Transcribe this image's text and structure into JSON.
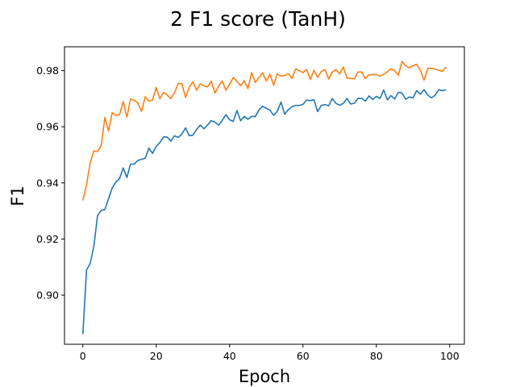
{
  "chart_data": {
    "type": "line",
    "title": "2 F1 score (TanH)",
    "xlabel": "Epoch",
    "ylabel": "F1",
    "xlim": [
      -5,
      104
    ],
    "ylim": [
      0.8825,
      0.9885
    ],
    "xticks": [
      0,
      20,
      40,
      60,
      80,
      100
    ],
    "yticks": [
      0.9,
      0.92,
      0.94,
      0.96,
      0.98
    ],
    "ytick_labels": [
      "0.90",
      "0.92",
      "0.94",
      "0.96",
      "0.98"
    ],
    "grid": false,
    "legend": "none",
    "x": [
      0,
      1,
      2,
      3,
      4,
      5,
      6,
      7,
      8,
      9,
      10,
      11,
      12,
      13,
      14,
      15,
      16,
      17,
      18,
      19,
      20,
      21,
      22,
      23,
      24,
      25,
      26,
      27,
      28,
      29,
      30,
      31,
      32,
      33,
      34,
      35,
      36,
      37,
      38,
      39,
      40,
      41,
      42,
      43,
      44,
      45,
      46,
      47,
      48,
      49,
      50,
      51,
      52,
      53,
      54,
      55,
      56,
      57,
      58,
      59,
      60,
      61,
      62,
      63,
      64,
      65,
      66,
      67,
      68,
      69,
      70,
      71,
      72,
      73,
      74,
      75,
      76,
      77,
      78,
      79,
      80,
      81,
      82,
      83,
      84,
      85,
      86,
      87,
      88,
      89,
      90,
      91,
      92,
      93,
      94,
      95,
      96,
      97,
      98,
      99
    ],
    "series": [
      {
        "color": "#1f77b4",
        "values": [
          0.8861,
          0.9089,
          0.9113,
          0.9174,
          0.9283,
          0.9302,
          0.9305,
          0.9343,
          0.9382,
          0.9403,
          0.9415,
          0.9453,
          0.9419,
          0.9467,
          0.9467,
          0.948,
          0.9484,
          0.9488,
          0.9524,
          0.9505,
          0.953,
          0.9544,
          0.9564,
          0.9563,
          0.9549,
          0.9568,
          0.9562,
          0.9574,
          0.9596,
          0.9568,
          0.957,
          0.959,
          0.9606,
          0.9593,
          0.9606,
          0.9622,
          0.9616,
          0.9606,
          0.9623,
          0.9643,
          0.9625,
          0.9619,
          0.9658,
          0.9621,
          0.9637,
          0.9627,
          0.9637,
          0.9636,
          0.966,
          0.9673,
          0.9666,
          0.9659,
          0.9641,
          0.9655,
          0.9688,
          0.9645,
          0.9661,
          0.9671,
          0.9676,
          0.9676,
          0.968,
          0.9695,
          0.9693,
          0.9696,
          0.9654,
          0.9676,
          0.9679,
          0.9675,
          0.9701,
          0.9683,
          0.9677,
          0.9683,
          0.9701,
          0.9681,
          0.9684,
          0.9701,
          0.9701,
          0.9691,
          0.971,
          0.9697,
          0.9708,
          0.9701,
          0.9731,
          0.9696,
          0.9711,
          0.9699,
          0.9723,
          0.972,
          0.9698,
          0.9706,
          0.9703,
          0.9729,
          0.9716,
          0.9732,
          0.9713,
          0.9703,
          0.9712,
          0.9732,
          0.9729,
          0.9731
        ]
      },
      {
        "color": "#ff7f0e",
        "values": [
          0.9338,
          0.9393,
          0.9472,
          0.9514,
          0.9512,
          0.9532,
          0.9633,
          0.9585,
          0.965,
          0.964,
          0.9643,
          0.969,
          0.9634,
          0.9699,
          0.9694,
          0.9685,
          0.9655,
          0.9707,
          0.9691,
          0.9695,
          0.974,
          0.97,
          0.9722,
          0.9713,
          0.97,
          0.9722,
          0.9754,
          0.9753,
          0.9704,
          0.9741,
          0.976,
          0.973,
          0.9753,
          0.9745,
          0.9742,
          0.9762,
          0.972,
          0.9744,
          0.9763,
          0.973,
          0.9752,
          0.9775,
          0.9762,
          0.9746,
          0.9764,
          0.9736,
          0.9793,
          0.9758,
          0.9775,
          0.9792,
          0.9763,
          0.9787,
          0.9748,
          0.9788,
          0.9781,
          0.9782,
          0.9789,
          0.9772,
          0.9806,
          0.98,
          0.9793,
          0.9804,
          0.9768,
          0.9801,
          0.9776,
          0.9797,
          0.9804,
          0.977,
          0.9795,
          0.9804,
          0.9788,
          0.9813,
          0.9773,
          0.9772,
          0.9771,
          0.9795,
          0.9795,
          0.9772,
          0.9785,
          0.9786,
          0.9786,
          0.978,
          0.9787,
          0.9796,
          0.9806,
          0.98,
          0.9783,
          0.9833,
          0.9817,
          0.981,
          0.9818,
          0.9822,
          0.9802,
          0.9766,
          0.9808,
          0.9808,
          0.9806,
          0.9801,
          0.9797,
          0.9813
        ]
      }
    ]
  }
}
